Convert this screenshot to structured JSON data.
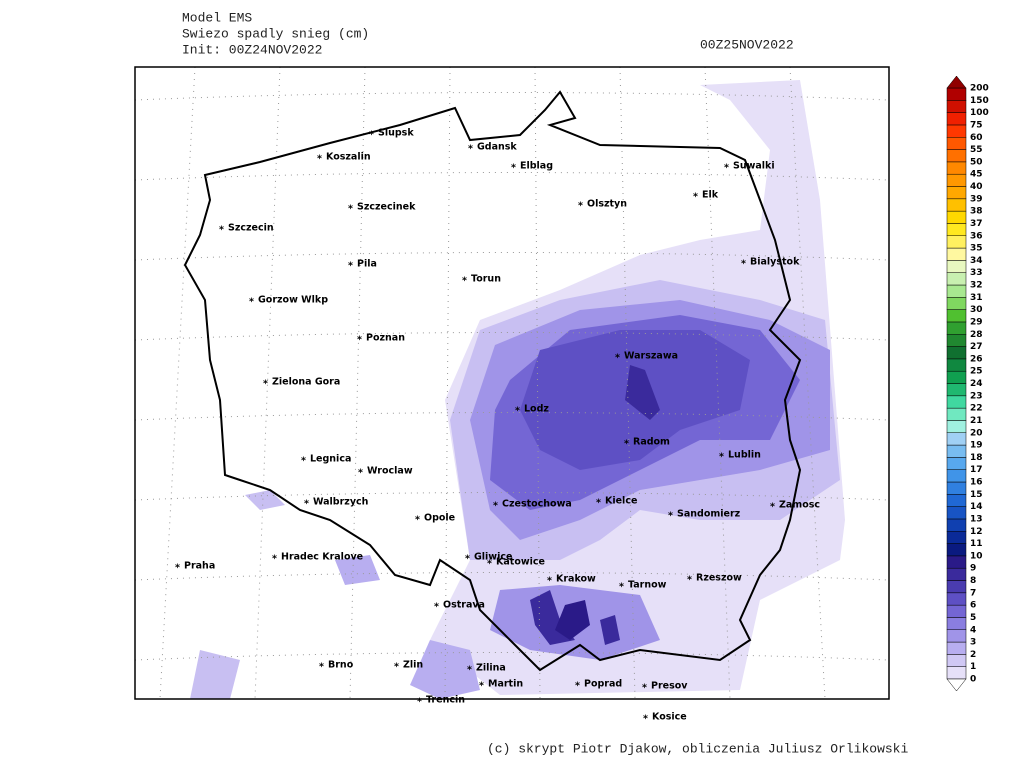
{
  "header": {
    "model": "Model EMS",
    "variable": "Swiezo spadly snieg (cm)",
    "init": "Init: 00Z24NOV2022",
    "valid": "00Z25NOV2022"
  },
  "cities": [
    "Slupsk",
    "Koszalin",
    "Gdansk",
    "Elblag",
    "Suwalki",
    "Szczecinek",
    "Olsztyn",
    "Elk",
    "Szczecin",
    "Pila",
    "Torun",
    "Bialystok",
    "Gorzow Wlkp",
    "Poznan",
    "Warszawa",
    "Zielona Gora",
    "Lodz",
    "Radom",
    "Lublin",
    "Legnica",
    "Wroclaw",
    "Walbrzych",
    "Czestochowa",
    "Kielce",
    "Opole",
    "Sandomierz",
    "Zamosc",
    "Praha",
    "Hradec Kralove",
    "Gliwice",
    "Katowice",
    "Krakow",
    "Tarnow",
    "Rzeszow",
    "Ostrava",
    "Brno",
    "Zlin",
    "Zilina",
    "Martin",
    "Poprad",
    "Presov",
    "Trencin",
    "Kosice"
  ],
  "colorbar": {
    "levels": [
      0,
      1,
      2,
      3,
      4,
      5,
      6,
      7,
      8,
      9,
      10,
      11,
      12,
      13,
      14,
      15,
      16,
      17,
      18,
      19,
      20,
      21,
      22,
      23,
      24,
      25,
      26,
      27,
      28,
      29,
      30,
      31,
      32,
      33,
      34,
      35,
      36,
      37,
      38,
      39,
      40,
      45,
      50,
      55,
      60,
      75,
      100,
      150,
      200
    ],
    "colors": [
      "#e6e0f8",
      "#d0c8f4",
      "#b8aef0",
      "#a094e8",
      "#8a7ee0",
      "#7466d4",
      "#5e50c4",
      "#4a3cb0",
      "#3a2a9c",
      "#2a1a88",
      "#0a1a80",
      "#0a2a98",
      "#1040b0",
      "#1854c4",
      "#2068d4",
      "#3080e0",
      "#4094e8",
      "#58a8ee",
      "#78bcf0",
      "#a0d0f4",
      "#a0f0e0",
      "#70e8c0",
      "#40d8a0",
      "#20b870",
      "#10a050",
      "#108840",
      "#107030",
      "#208830",
      "#30a030",
      "#50c030",
      "#80d860",
      "#a8e890",
      "#c8f0b0",
      "#e8f8c0",
      "#fff8a0",
      "#fff060",
      "#ffe820",
      "#ffd800",
      "#ffc000",
      "#ffa800",
      "#ff9800",
      "#ff8800",
      "#ff7000",
      "#ff5800",
      "#ff3800",
      "#f02000",
      "#d01000",
      "#b00000",
      "#900000"
    ]
  },
  "footer": "(c) skrypt Piotr Djakow, obliczenia Juliusz Orlikowski"
}
